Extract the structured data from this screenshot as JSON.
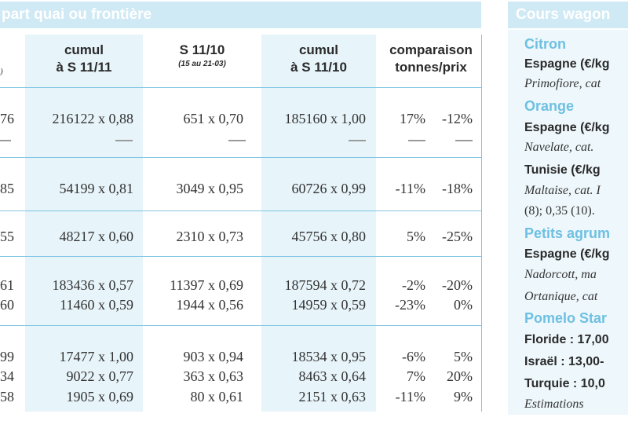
{
  "left_title": "part quai ou frontière",
  "right_title": "Cours wagon",
  "columns": {
    "c1": {
      "line1": "cumul",
      "line2": "à S 11/11"
    },
    "c2": {
      "line1": "S 11/10",
      "sub": "(15 au 21-03)"
    },
    "c3": {
      "line1": "cumul",
      "line2": "à S 11/10"
    },
    "c4": {
      "line1": "comparaison",
      "line2": "tonnes/prix"
    }
  },
  "rows": [
    {
      "c0": "76",
      "c1": "216122 x 0,88",
      "c2": "651 x 0,70",
      "c3": "185160 x 1,00",
      "pct1": "17%",
      "pct2": "-12%"
    },
    {
      "c0": "85",
      "c1": "54199 x 0,81",
      "c2": "3049 x 0,95",
      "c3": "60726 x 0,99",
      "pct1": "-11%",
      "pct2": "-18%"
    },
    {
      "c0": "55",
      "c1": "48217 x 0,60",
      "c2": "2310 x 0,73",
      "c3": "45756 x 0,80",
      "pct1": "5%",
      "pct2": "-25%"
    },
    {
      "c0": "61",
      "c1": "183436 x 0,57",
      "c2": "11397 x 0,69",
      "c3": "187594 x 0,72",
      "pct1": "-2%",
      "pct2": "-20%"
    },
    {
      "c0": "60",
      "c1": "11460 x 0,59",
      "c2": "1944 x 0,56",
      "c3": "14959 x 0,59",
      "pct1": "-23%",
      "pct2": "0%"
    },
    {
      "c0": "99",
      "c1": "17477 x 1,00",
      "c2": "903 x 0,94",
      "c3": "18534 x 0,95",
      "pct1": "-6%",
      "pct2": "5%"
    },
    {
      "c0": "34",
      "c1": "9022 x 0,77",
      "c2": "363 x 0,63",
      "c3": "8463 x 0,64",
      "pct1": "7%",
      "pct2": "20%"
    },
    {
      "c0": "58",
      "c1": "1905 x 0,69",
      "c2": "80 x 0,61",
      "c3": "2151 x 0,63",
      "pct1": "-11%",
      "pct2": "9%"
    }
  ],
  "side": {
    "citron_h": "Citron",
    "citron_1": "Espagne (€/kg",
    "citron_2": "Primofiore, cat",
    "orange_h": "Orange",
    "orange_1": "Espagne (€/kg",
    "orange_2": "Navelate, cat.",
    "orange_3": "Tunisie (€/kg",
    "orange_4": "Maltaise, cat. I",
    "orange_5": "(8); 0,35 (10).",
    "petits_h": "Petits agrum",
    "petits_1": "Espagne (€/kg",
    "petits_2": "Nadorcott, ma",
    "petits_3": "Ortanique, cat",
    "pomelo_h": "Pomelo Star",
    "pomelo_1": "Floride : 17,00",
    "pomelo_2": "Israël : 13,00-",
    "pomelo_3": "Turquie : 10,0",
    "pomelo_4": "Estimations"
  }
}
